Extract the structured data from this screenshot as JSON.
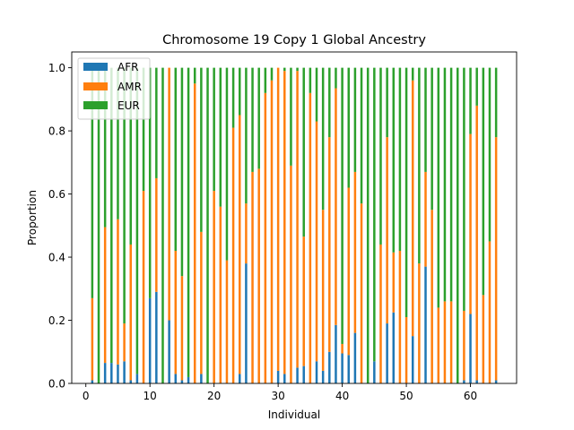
{
  "chart_data": {
    "type": "bar",
    "stacked": true,
    "title": "Chromosome 19 Copy 1 Global Ancestry",
    "xlabel": "Individual",
    "ylabel": "Proportion",
    "xlim": [
      -2.2,
      67.2
    ],
    "ylim": [
      0,
      1.05
    ],
    "xticks": [
      0,
      10,
      20,
      30,
      40,
      50,
      60
    ],
    "yticks": [
      0.0,
      0.2,
      0.4,
      0.6,
      0.8,
      1.0
    ],
    "ytick_labels": [
      "0.0",
      "0.2",
      "0.4",
      "0.6",
      "0.8",
      "1.0"
    ],
    "legend_position": "top-left",
    "colors": {
      "AFR": "#1f77b4",
      "AMR": "#ff7f0e",
      "EUR": "#2ca02c"
    },
    "x": [
      1,
      2,
      3,
      4,
      5,
      6,
      7,
      8,
      9,
      10,
      11,
      12,
      13,
      14,
      15,
      16,
      17,
      18,
      19,
      20,
      21,
      22,
      23,
      24,
      25,
      26,
      27,
      28,
      29,
      30,
      31,
      32,
      33,
      34,
      35,
      36,
      37,
      38,
      39,
      40,
      41,
      42,
      43,
      44,
      45,
      46,
      47,
      48,
      49,
      50,
      51,
      52,
      53,
      54,
      55,
      56,
      57,
      58,
      59,
      60,
      61,
      62,
      63,
      64
    ],
    "series": [
      {
        "name": "AFR",
        "values": [
          0.01,
          0.0,
          0.065,
          0.065,
          0.06,
          0.07,
          0.01,
          0.03,
          0.0,
          0.27,
          0.29,
          0.0,
          0.2,
          0.03,
          0.01,
          0.02,
          0.0,
          0.03,
          0.0,
          0.0,
          0.0,
          0.0,
          0.0,
          0.03,
          0.38,
          0.0,
          0.0,
          0.0,
          0.0,
          0.04,
          0.03,
          0.0,
          0.05,
          0.055,
          0.0,
          0.07,
          0.04,
          0.1,
          0.185,
          0.095,
          0.09,
          0.16,
          0.0,
          0.0,
          0.07,
          0.0,
          0.19,
          0.225,
          0.0,
          0.0,
          0.15,
          0.0,
          0.37,
          0.0,
          0.0,
          0.0,
          0.0,
          0.0,
          0.01,
          0.22,
          0.01,
          0.0,
          0.0,
          0.01
        ]
      },
      {
        "name": "AMR",
        "values": [
          0.26,
          0.0,
          0.43,
          0.0,
          0.46,
          0.12,
          0.43,
          0.0,
          0.61,
          0.0,
          0.36,
          0.0,
          0.8,
          0.39,
          0.33,
          0.0,
          0.95,
          0.45,
          0.0,
          0.61,
          0.56,
          0.39,
          0.81,
          0.82,
          0.19,
          0.67,
          0.68,
          0.92,
          0.96,
          0.96,
          0.96,
          0.69,
          0.94,
          0.41,
          0.92,
          0.76,
          0.51,
          0.68,
          0.75,
          0.03,
          0.53,
          0.51,
          0.57,
          0.0,
          0.0,
          0.44,
          0.59,
          0.19,
          0.42,
          0.21,
          0.81,
          0.38,
          0.3,
          0.55,
          0.24,
          0.26,
          0.26,
          0.0,
          0.22,
          0.57,
          0.87,
          0.28,
          0.45,
          0.77
        ]
      },
      {
        "name": "EUR",
        "values": [
          0.73,
          1.0,
          0.505,
          0.935,
          0.48,
          0.81,
          0.56,
          0.97,
          0.39,
          0.73,
          0.35,
          1.0,
          0.0,
          0.58,
          0.66,
          0.98,
          0.05,
          0.52,
          1.0,
          0.39,
          0.44,
          0.61,
          0.19,
          0.15,
          0.43,
          0.33,
          0.32,
          0.08,
          0.04,
          0.0,
          0.01,
          0.31,
          0.01,
          0.535,
          0.08,
          0.17,
          0.45,
          0.22,
          0.065,
          0.875,
          0.38,
          0.33,
          0.43,
          1.0,
          0.93,
          0.56,
          0.22,
          0.585,
          0.58,
          0.79,
          0.04,
          0.62,
          0.33,
          0.45,
          0.76,
          0.74,
          0.74,
          1.0,
          0.77,
          0.21,
          0.12,
          0.72,
          0.55,
          0.22
        ]
      }
    ]
  }
}
